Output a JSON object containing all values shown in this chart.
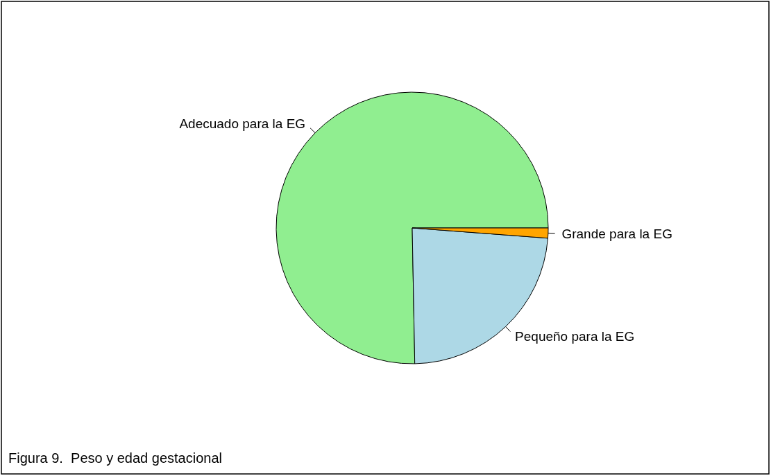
{
  "chart_data": {
    "type": "pie",
    "categories": [
      "Adecuado para la EG",
      "Pequeño para la EG",
      "Grande para la EG"
    ],
    "values": [
      75.3,
      23.5,
      1.2
    ],
    "colors": [
      "#90ee90",
      "#add8e6",
      "#ffa500"
    ],
    "annotations": [
      "Figura 9.  Peso y edad gestacional"
    ]
  }
}
